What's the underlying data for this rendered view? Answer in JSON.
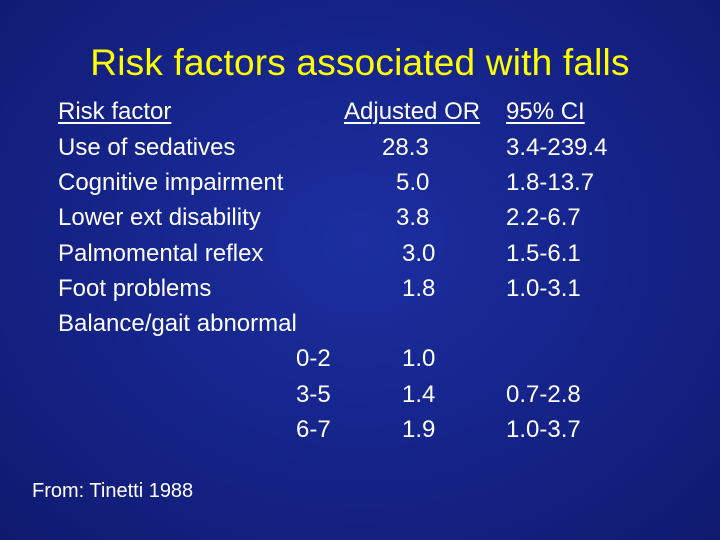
{
  "slide": {
    "title": "Risk factors associated with falls",
    "source": "From: Tinetti 1988"
  },
  "table": {
    "headers": [
      "Risk factor",
      "Adjusted OR",
      "95% CI"
    ],
    "rows": [
      [
        "Use of sedatives",
        "28.3",
        "3.4-239.4"
      ],
      [
        "Cognitive impairment",
        "5.0",
        "1.8-13.7"
      ],
      [
        "Lower ext disability",
        "3.8",
        "2.2-6.7"
      ],
      [
        "Palmomental reflex",
        "3.0",
        "1.5-6.1"
      ],
      [
        "Foot problems",
        "1.8",
        "1.0-3.1"
      ],
      [
        "Balance/gait abnormal",
        "",
        ""
      ],
      [
        "0-2",
        "1.0",
        ""
      ],
      [
        "3-5",
        "1.4",
        "0.7-2.8"
      ],
      [
        "6-7",
        "1.9",
        "1.0-3.7"
      ]
    ]
  }
}
